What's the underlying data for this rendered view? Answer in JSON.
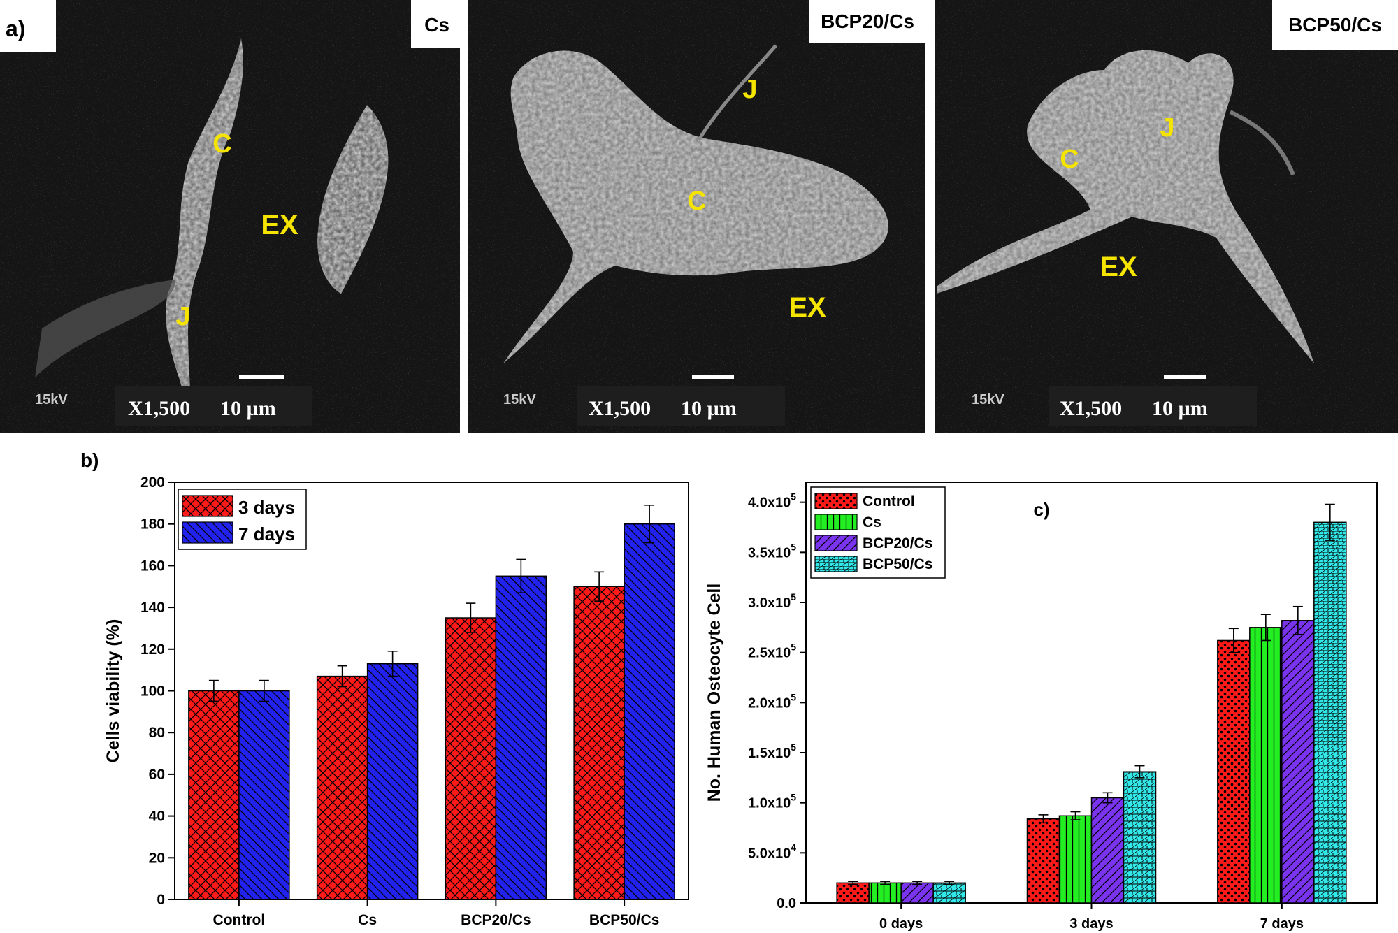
{
  "panel_labels": {
    "a": "a)",
    "b": "b)",
    "c": "c)"
  },
  "sem_images": [
    {
      "title": "Cs",
      "voltage": "15kV",
      "magnification": "X1,500",
      "scale": "10 µm",
      "labels": [
        {
          "text": "C"
        },
        {
          "text": "EX"
        },
        {
          "text": "J"
        }
      ]
    },
    {
      "title": "BCP20/Cs",
      "voltage": "15kV",
      "magnification": "X1,500",
      "scale": "10 µm",
      "labels": [
        {
          "text": "J"
        },
        {
          "text": "C"
        },
        {
          "text": "EX"
        }
      ]
    },
    {
      "title": "BCP50/Cs",
      "voltage": "15kV",
      "magnification": "X1,500",
      "scale": "10 µm",
      "labels": [
        {
          "text": "C"
        },
        {
          "text": "J"
        },
        {
          "text": "EX"
        }
      ]
    }
  ],
  "colors": {
    "red": "#ff1a1a",
    "blue": "#2222ee",
    "green": "#22ee22",
    "purple": "#7a33ee",
    "cyan": "#33e8e8",
    "label_yellow": "#f5e400"
  },
  "chart_data": [
    {
      "type": "bar",
      "ylabel": "Cells viability (%)",
      "xlabel": "",
      "ylim": [
        0,
        200
      ],
      "yticks": [
        "0",
        "20",
        "40",
        "60",
        "80",
        "100",
        "120",
        "140",
        "160",
        "180",
        "200"
      ],
      "categories": [
        "Control",
        "Cs",
        "BCP20/Cs",
        "BCP50/Cs"
      ],
      "legend_position": "top-left",
      "series": [
        {
          "name": "3 days",
          "values": [
            100,
            107,
            135,
            150
          ],
          "errors": [
            5,
            5,
            7,
            7
          ],
          "color": "#ff1a1a",
          "pattern": "crosshatch"
        },
        {
          "name": "7 days",
          "values": [
            100,
            113,
            155,
            180
          ],
          "errors": [
            5,
            6,
            8,
            9
          ],
          "color": "#2222ee",
          "pattern": "diagonal"
        }
      ]
    },
    {
      "type": "bar",
      "ylabel": "No. Human Osteocyte Cell",
      "xlabel": "",
      "ylim": [
        0,
        420000
      ],
      "yticks": [
        {
          "base": "0.0",
          "exp": ""
        },
        {
          "base": "5.0x10",
          "exp": "4"
        },
        {
          "base": "1.0x10",
          "exp": "5"
        },
        {
          "base": "1.5x10",
          "exp": "5"
        },
        {
          "base": "2.0x10",
          "exp": "5"
        },
        {
          "base": "2.5x10",
          "exp": "5"
        },
        {
          "base": "3.0x10",
          "exp": "5"
        },
        {
          "base": "3.5x10",
          "exp": "5"
        },
        {
          "base": "4.0x10",
          "exp": "5"
        }
      ],
      "categories": [
        "0 days",
        "3 days",
        "7 days"
      ],
      "legend_position": "top-left",
      "series": [
        {
          "name": "Control",
          "values": [
            20000,
            84000,
            262000
          ],
          "errors": [
            1500,
            4000,
            12000
          ],
          "color": "#ff1a1a",
          "pattern": "dots"
        },
        {
          "name": "Cs",
          "values": [
            20000,
            87000,
            275000
          ],
          "errors": [
            1500,
            4000,
            13000
          ],
          "color": "#22ee22",
          "pattern": "vertical"
        },
        {
          "name": "BCP20/Cs",
          "values": [
            20000,
            105000,
            282000
          ],
          "errors": [
            1500,
            5000,
            14000
          ],
          "color": "#7a33ee",
          "pattern": "diagonal"
        },
        {
          "name": "BCP50/Cs",
          "values": [
            20000,
            131000,
            380000
          ],
          "errors": [
            1500,
            6000,
            18000
          ],
          "color": "#33e8e8",
          "pattern": "brick"
        }
      ]
    }
  ]
}
